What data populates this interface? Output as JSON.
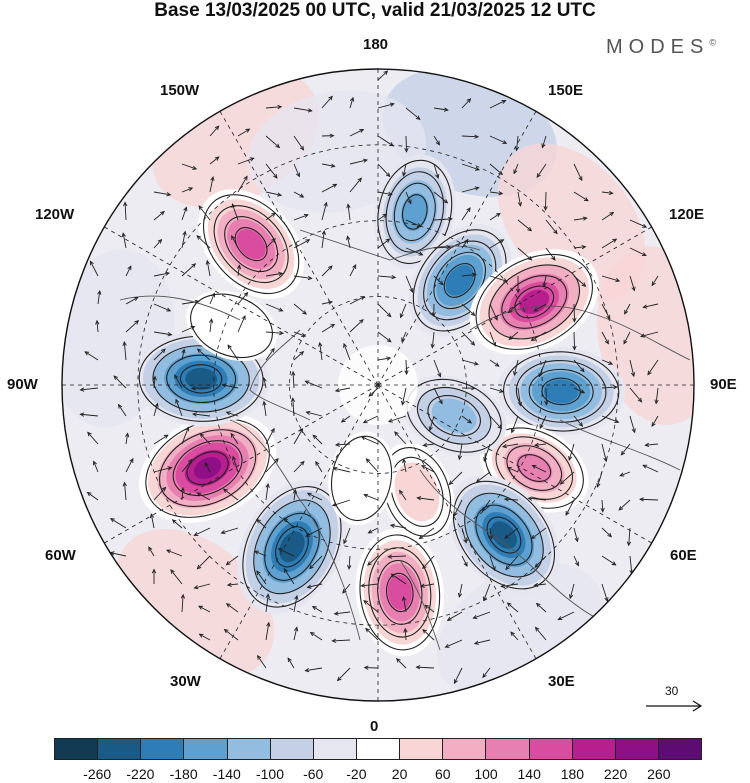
{
  "title": "Base 13/03/2025 00 UTC, valid 21/03/2025 12 UTC",
  "brand": "MODES",
  "brand_mark": "©",
  "longitude_labels": {
    "lon_180": "180",
    "lon_150w": "150W",
    "lon_150e": "150E",
    "lon_120w": "120W",
    "lon_120e": "120E",
    "lon_90w": "90W",
    "lon_90e": "90E",
    "lon_60w": "60W",
    "lon_60e": "60E",
    "lon_30w": "30W",
    "lon_30e": "30E",
    "lon_0": "0"
  },
  "vector_reference": {
    "label": "30",
    "value": 30
  },
  "colorbar": {
    "ticks": [
      "-260",
      "-220",
      "-180",
      "-140",
      "-100",
      "-60",
      "-20",
      "20",
      "60",
      "100",
      "140",
      "180",
      "220",
      "260"
    ],
    "colors": [
      "#123a52",
      "#1a5a86",
      "#2e7db6",
      "#5ea0cf",
      "#93bde0",
      "#c3d0e6",
      "#e6e6f0",
      "#ffffff",
      "#f9d6d6",
      "#f2aec3",
      "#e87fb1",
      "#d94c9f",
      "#b71f8e",
      "#8e0f86",
      "#5c0c72"
    ]
  },
  "anomalies": [
    {
      "lon": -138,
      "r": 0.6,
      "value": 190
    },
    {
      "lon": 168,
      "r": 0.56,
      "value": -150
    },
    {
      "lon": 142,
      "r": 0.42,
      "value": -190
    },
    {
      "lon": 118,
      "r": 0.56,
      "value": 240
    },
    {
      "lon": 88,
      "r": 0.58,
      "value": -200
    },
    {
      "lon": 62,
      "r": 0.56,
      "value": 150
    },
    {
      "lon": 40,
      "r": 0.62,
      "value": -230
    },
    {
      "lon": 6,
      "r": 0.66,
      "value": 200
    },
    {
      "lon": -28,
      "r": 0.58,
      "value": -260
    },
    {
      "lon": -64,
      "r": 0.6,
      "value": 270
    },
    {
      "lon": -92,
      "r": 0.56,
      "value": -240
    },
    {
      "lon": 68,
      "r": 0.26,
      "value": -120
    },
    {
      "lon": -112,
      "r": 0.5,
      "value": 60
    },
    {
      "lon": 20,
      "r": 0.36,
      "value": 90
    },
    {
      "lon": -10,
      "r": 0.3,
      "value": 60
    }
  ]
}
